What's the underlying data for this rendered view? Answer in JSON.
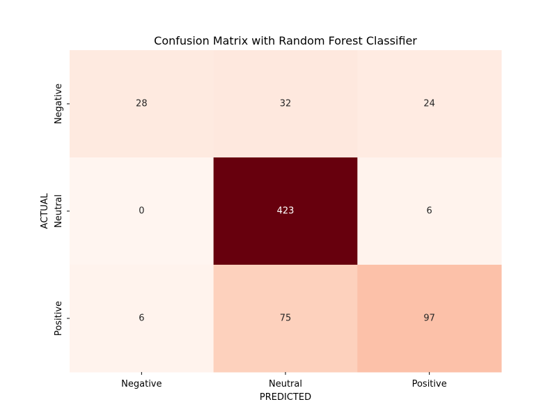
{
  "chart_data": {
    "type": "heatmap",
    "title": "Confusion Matrix with Random Forest Classifier",
    "xlabel": "PREDICTED",
    "ylabel": "ACTUAL",
    "x_categories": [
      "Negative",
      "Neutral",
      "Positive"
    ],
    "y_categories": [
      "Negative",
      "Neutral",
      "Positive"
    ],
    "values": [
      [
        28,
        32,
        24
      ],
      [
        0,
        423,
        6
      ],
      [
        6,
        75,
        97
      ]
    ],
    "colormap": "Reds",
    "colorbar": false,
    "grid": false
  }
}
